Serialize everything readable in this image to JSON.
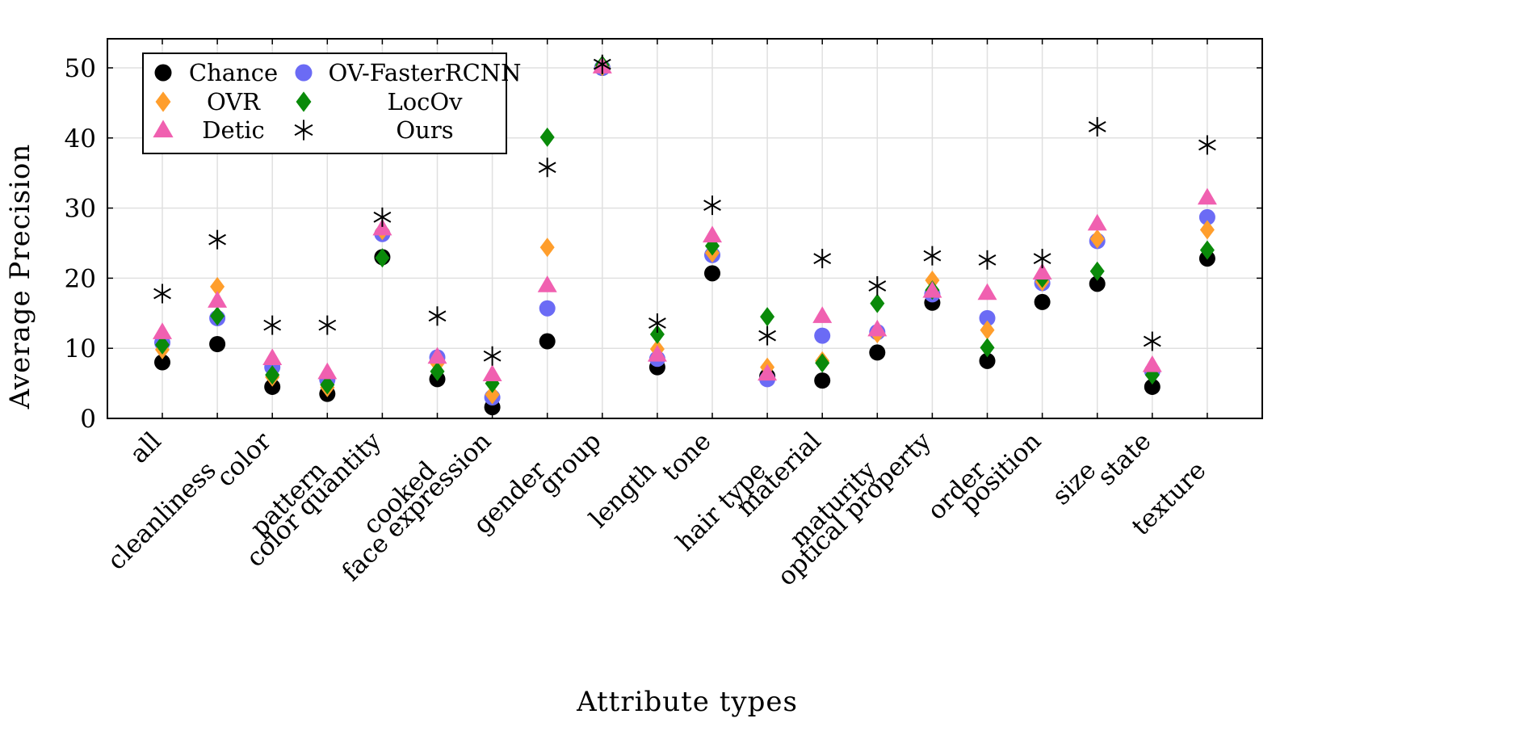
{
  "chart_data": {
    "type": "scatter",
    "title": "",
    "xlabel": "Attribute types",
    "ylabel": "Average Precision",
    "ylim": [
      0,
      54
    ],
    "yticks": [
      0,
      10,
      20,
      30,
      40,
      50
    ],
    "grid": true,
    "legend_position": "top-left",
    "categories": [
      "all",
      "cleanliness",
      "color",
      "pattern",
      "color quantity",
      "cooked",
      "face expression",
      "gender",
      "group",
      "length",
      "tone",
      "hair type",
      "material",
      "maturity",
      "optical property",
      "order",
      "position",
      "size",
      "state",
      "texture"
    ],
    "series": [
      {
        "name": "Chance",
        "marker": "circle",
        "color": "#000000",
        "values": [
          8,
          10.6,
          4.5,
          3.5,
          23,
          5.6,
          1.6,
          11,
          50,
          7.3,
          20.7,
          6,
          5.4,
          9.4,
          16.5,
          8.2,
          16.6,
          19.2,
          4.5,
          22.8
        ]
      },
      {
        "name": "OV-FasterRCNN",
        "marker": "circle",
        "color": "#6b6bf5",
        "values": [
          10.8,
          14.3,
          7.3,
          5.5,
          26.3,
          8.7,
          3,
          15.7,
          50,
          8.5,
          23.3,
          5.6,
          11.8,
          12.3,
          17.7,
          14.3,
          19.3,
          25.3,
          6.7,
          28.7
        ]
      },
      {
        "name": "OVR",
        "marker": "diamond",
        "color": "#ff9e2c",
        "values": [
          9.8,
          18.8,
          5.9,
          4.4,
          26.8,
          7.8,
          3.4,
          24.4,
          50.2,
          9.9,
          23.6,
          7.3,
          8.2,
          12.1,
          19.7,
          12.6,
          19.5,
          25.6,
          6.9,
          26.9
        ]
      },
      {
        "name": "LocOv",
        "marker": "diamond",
        "color": "#0a8a0a",
        "values": [
          10.5,
          14.6,
          6.2,
          4.8,
          22.9,
          6.7,
          5,
          40.1,
          50.4,
          12,
          24.6,
          14.5,
          7.9,
          16.4,
          18.3,
          10.1,
          20,
          21,
          6.2,
          24
        ]
      },
      {
        "name": "Detic",
        "marker": "triangle",
        "color": "#f060b0",
        "values": [
          12.3,
          16.8,
          8.6,
          6.6,
          27.1,
          8.8,
          6.3,
          19,
          50.2,
          9.1,
          26.1,
          6.4,
          14.6,
          12.7,
          18.2,
          17.9,
          20.8,
          27.8,
          7.6,
          31.5
        ]
      },
      {
        "name": "Ours",
        "marker": "star",
        "color": "#000000",
        "values": [
          17.8,
          25.5,
          13.3,
          13.3,
          28.7,
          14.6,
          8.9,
          35.8,
          50.5,
          13.6,
          30.4,
          11.8,
          22.8,
          18.9,
          23.2,
          22.6,
          22.8,
          41.6,
          11,
          39
        ]
      }
    ],
    "legend": {
      "columns": [
        [
          "Chance",
          "OVR",
          "Detic"
        ],
        [
          "OV-FasterRCNN",
          "LocOv",
          "Ours"
        ]
      ]
    }
  }
}
